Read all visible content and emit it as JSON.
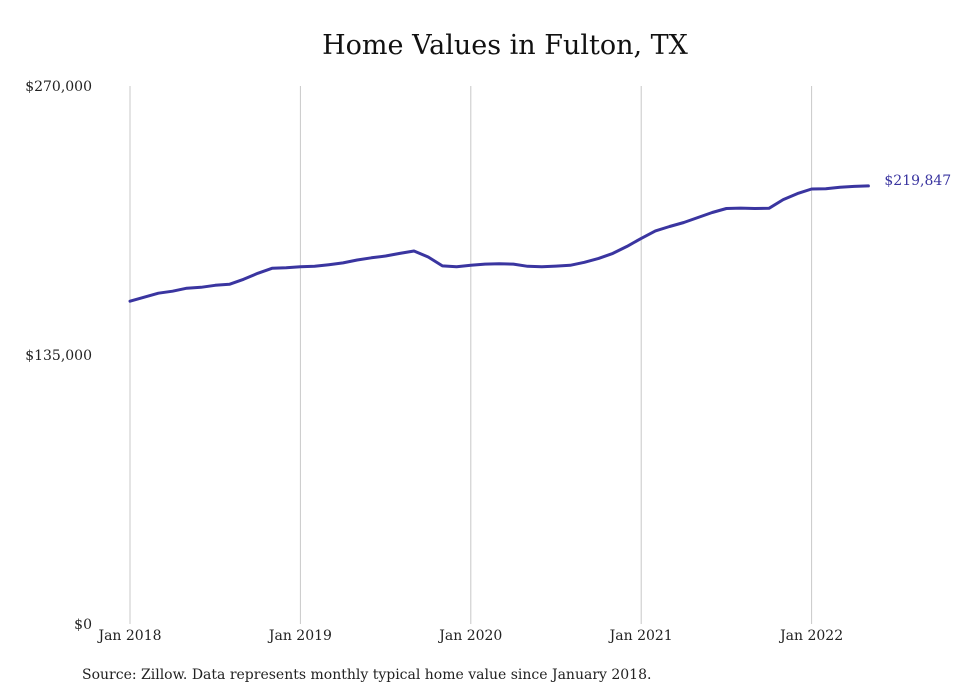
{
  "chart_data": {
    "type": "line",
    "title": "Home Values in Fulton, TX",
    "xlabel": "",
    "ylabel": "",
    "ylim": [
      0,
      270000
    ],
    "y_ticks": [
      {
        "value": 0,
        "label": "$0"
      },
      {
        "value": 135000,
        "label": "$135,000"
      },
      {
        "value": 270000,
        "label": "$270,000"
      }
    ],
    "x_ticks": [
      "Jan 2018",
      "Jan 2019",
      "Jan 2020",
      "Jan 2021",
      "Jan 2022"
    ],
    "grid": {
      "vertical": true,
      "horizontal": false
    },
    "series": [
      {
        "name": "",
        "color": "#3a35a0",
        "x": [
          "2018-01",
          "2018-02",
          "2018-03",
          "2018-04",
          "2018-05",
          "2018-06",
          "2018-07",
          "2018-08",
          "2018-09",
          "2018-10",
          "2018-11",
          "2018-12",
          "2019-01",
          "2019-02",
          "2019-03",
          "2019-04",
          "2019-05",
          "2019-06",
          "2019-07",
          "2019-08",
          "2019-09",
          "2019-10",
          "2019-11",
          "2019-12",
          "2020-01",
          "2020-02",
          "2020-03",
          "2020-04",
          "2020-05",
          "2020-06",
          "2020-07",
          "2020-08",
          "2020-09",
          "2020-10",
          "2020-11",
          "2020-12",
          "2021-01",
          "2021-02",
          "2021-03",
          "2021-04",
          "2021-05",
          "2021-06",
          "2021-07",
          "2021-08",
          "2021-09",
          "2021-10",
          "2021-11",
          "2021-12",
          "2022-01",
          "2022-02",
          "2022-03",
          "2022-04",
          "2022-05"
        ],
        "values": [
          162000,
          164000,
          166000,
          167000,
          168500,
          169000,
          170000,
          170500,
          173000,
          176000,
          178500,
          178800,
          179300,
          179500,
          180300,
          181200,
          182700,
          183800,
          184700,
          186000,
          187200,
          184200,
          179700,
          179300,
          180000,
          180600,
          180800,
          180600,
          179500,
          179300,
          179600,
          180000,
          181500,
          183500,
          186000,
          189500,
          193500,
          197300,
          199500,
          201500,
          204000,
          206500,
          208500,
          208700,
          208500,
          208600,
          213000,
          216000,
          218300,
          218400,
          219200,
          219600,
          219847
        ]
      }
    ],
    "end_label": "$219,847"
  },
  "footer": {
    "source": "Source: Zillow. Data represents monthly typical home value since January 2018."
  }
}
